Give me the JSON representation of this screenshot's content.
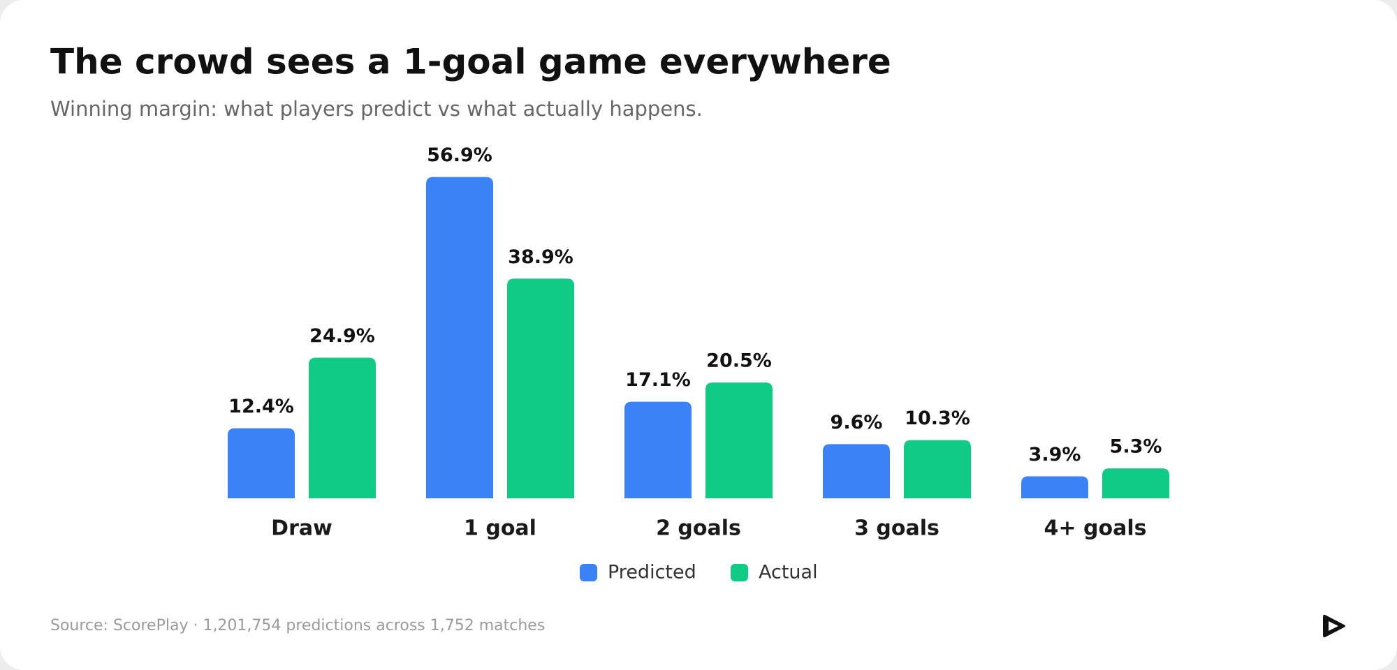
{
  "chart_data": {
    "type": "bar",
    "title": "The crowd sees a 1-goal game everywhere",
    "subtitle": "Winning margin: what players predict vs what actually happens.",
    "categories": [
      "Draw",
      "1 goal",
      "2 goals",
      "3 goals",
      "4+ goals"
    ],
    "series": [
      {
        "name": "Predicted",
        "color": "#3b82f6",
        "values": [
          12.4,
          56.9,
          17.1,
          9.6,
          3.9
        ],
        "value_labels": [
          "12.4%",
          "56.9%",
          "17.1%",
          "9.6%",
          "3.9%"
        ]
      },
      {
        "name": "Actual",
        "color": "#10cb85",
        "values": [
          24.9,
          38.9,
          20.5,
          10.3,
          5.3
        ],
        "value_labels": [
          "24.9%",
          "38.9%",
          "20.5%",
          "10.3%",
          "5.3%"
        ]
      }
    ],
    "source": "Source: ScorePlay · 1,201,754 predictions across 1,752 matches"
  }
}
